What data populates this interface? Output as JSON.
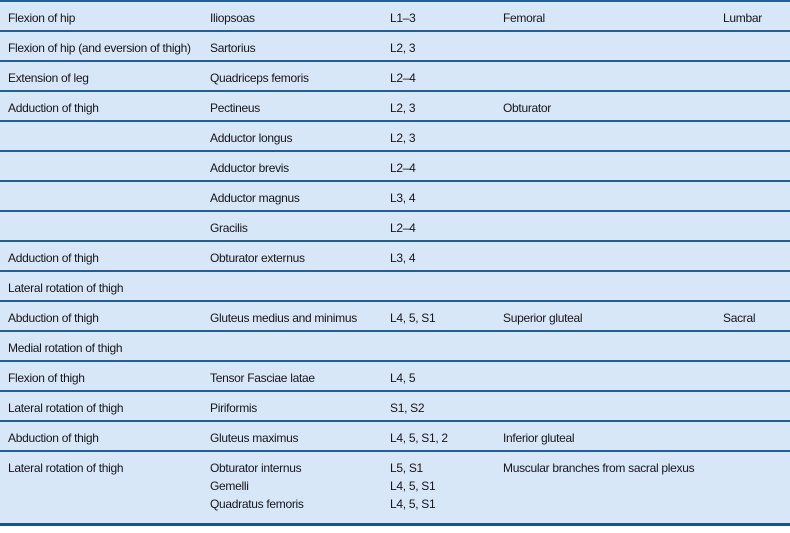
{
  "colors": {
    "row_background": "#d7e7f8",
    "rule_line": "#1f609c",
    "bottom_border": "#15548f",
    "text": "#15151d"
  },
  "table": {
    "column_keys": [
      "action",
      "muscle",
      "roots",
      "nerve",
      "plexus"
    ],
    "rows": [
      {
        "action": "Flexion of hip",
        "muscle": "Iliopsoas",
        "roots": "L1–3",
        "nerve": "Femoral",
        "plexus": "Lumbar"
      },
      {
        "action": "Flexion of hip (and eversion of thigh)",
        "muscle": "Sartorius",
        "roots": "L2, 3",
        "nerve": "",
        "plexus": ""
      },
      {
        "action": "Extension of leg",
        "muscle": "Quadriceps femoris",
        "roots": "L2–4",
        "nerve": "",
        "plexus": ""
      },
      {
        "action": "Adduction of thigh",
        "muscle": "Pectineus",
        "roots": "L2, 3",
        "nerve": "Obturator",
        "plexus": ""
      },
      {
        "action": "",
        "muscle": "Adductor longus",
        "roots": "L2, 3",
        "nerve": "",
        "plexus": ""
      },
      {
        "action": "",
        "muscle": "Adductor brevis",
        "roots": "L2–4",
        "nerve": "",
        "plexus": ""
      },
      {
        "action": "",
        "muscle": "Adductor magnus",
        "roots": "L3, 4",
        "nerve": "",
        "plexus": ""
      },
      {
        "action": "",
        "muscle": "Gracilis",
        "roots": "L2–4",
        "nerve": "",
        "plexus": ""
      },
      {
        "action": "Adduction of thigh",
        "muscle": "Obturator externus",
        "roots": "L3, 4",
        "nerve": "",
        "plexus": ""
      },
      {
        "action": "Lateral rotation of thigh",
        "muscle": "",
        "roots": "",
        "nerve": "",
        "plexus": ""
      },
      {
        "action": "Abduction of thigh",
        "muscle": "Gluteus medius and minimus",
        "roots": "L4, 5, S1",
        "nerve": "Superior gluteal",
        "plexus": "Sacral"
      },
      {
        "action": "Medial rotation of thigh",
        "muscle": "",
        "roots": "",
        "nerve": "",
        "plexus": ""
      },
      {
        "action": "Flexion of thigh",
        "muscle": "Tensor Fasciae latae",
        "roots": "L4, 5",
        "nerve": "",
        "plexus": ""
      },
      {
        "action": "Lateral rotation of thigh",
        "muscle": "Piriformis",
        "roots": "S1, S2",
        "nerve": "",
        "plexus": ""
      },
      {
        "action": "Abduction of thigh",
        "muscle": "Gluteus maximus",
        "roots": "L4, 5, S1, 2",
        "nerve": "Inferior gluteal",
        "plexus": ""
      },
      {
        "action": "Lateral rotation of thigh",
        "muscle": "Obturator internus\nGemelli\nQuadratus femoris",
        "roots": "L5, S1\nL4, 5, S1\nL4, 5, S1",
        "nerve": "Muscular branches from sacral plexus",
        "plexus": ""
      }
    ]
  }
}
